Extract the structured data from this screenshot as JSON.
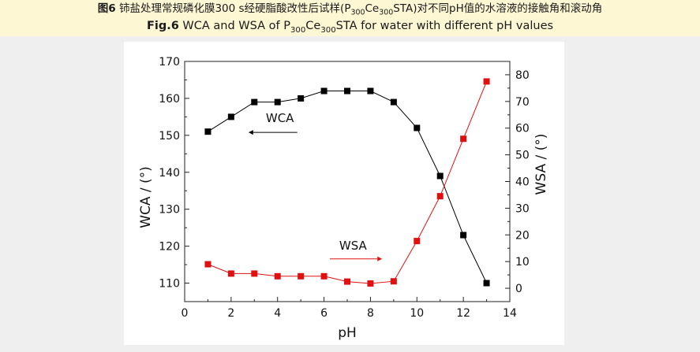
{
  "caption": {
    "cn_prefix": "图6",
    "cn_text_a": " 铈盐处理常规磷化膜300 s经硬脂酸改性后试样(P",
    "cn_sub1": "300",
    "cn_text_b": "Ce",
    "cn_sub2": "300",
    "cn_text_c": "STA)对不同pH值的水溶液的接触角和滚动角",
    "en_prefix": "Fig.6",
    "en_text_a": " WCA and WSA of P",
    "en_sub1": "300",
    "en_text_b": "Ce",
    "en_sub2": "300",
    "en_text_c": "STA for water with different pH values"
  },
  "chart_data": {
    "type": "line",
    "title": "",
    "xlabel": "pH",
    "ylabel_left": "WCA / (°)",
    "ylabel_right": "WSA / (°)",
    "xlim": [
      0,
      14
    ],
    "ylim_left": [
      105,
      170
    ],
    "ylim_right": [
      -5,
      85
    ],
    "x_ticks": [
      0,
      2,
      4,
      6,
      8,
      10,
      12,
      14
    ],
    "y_left_ticks": [
      110,
      120,
      130,
      140,
      150,
      160,
      170
    ],
    "y_right_ticks": [
      0,
      10,
      20,
      30,
      40,
      50,
      60,
      70,
      80
    ],
    "series": [
      {
        "name": "WCA",
        "axis": "left",
        "color": "#000000",
        "x": [
          1,
          2,
          3,
          4,
          5,
          6,
          7,
          8,
          9,
          10,
          11,
          12,
          13
        ],
        "values": [
          151,
          155,
          159,
          159,
          160,
          162,
          162,
          162,
          159,
          152,
          139,
          123,
          110
        ]
      },
      {
        "name": "WSA",
        "axis": "right",
        "color": "#e01010",
        "x": [
          1,
          2,
          3,
          4,
          5,
          6,
          7,
          8,
          9,
          10,
          11,
          12,
          13
        ],
        "values": [
          9,
          5.5,
          5.5,
          4.5,
          4.5,
          4.5,
          2.5,
          1.8,
          2.6,
          17.7,
          34.5,
          56,
          77.5
        ]
      }
    ],
    "annotations": [
      {
        "text": "WCA",
        "arrow": "left",
        "series": "WCA"
      },
      {
        "text": "WSA",
        "arrow": "right",
        "series": "WSA"
      }
    ]
  }
}
